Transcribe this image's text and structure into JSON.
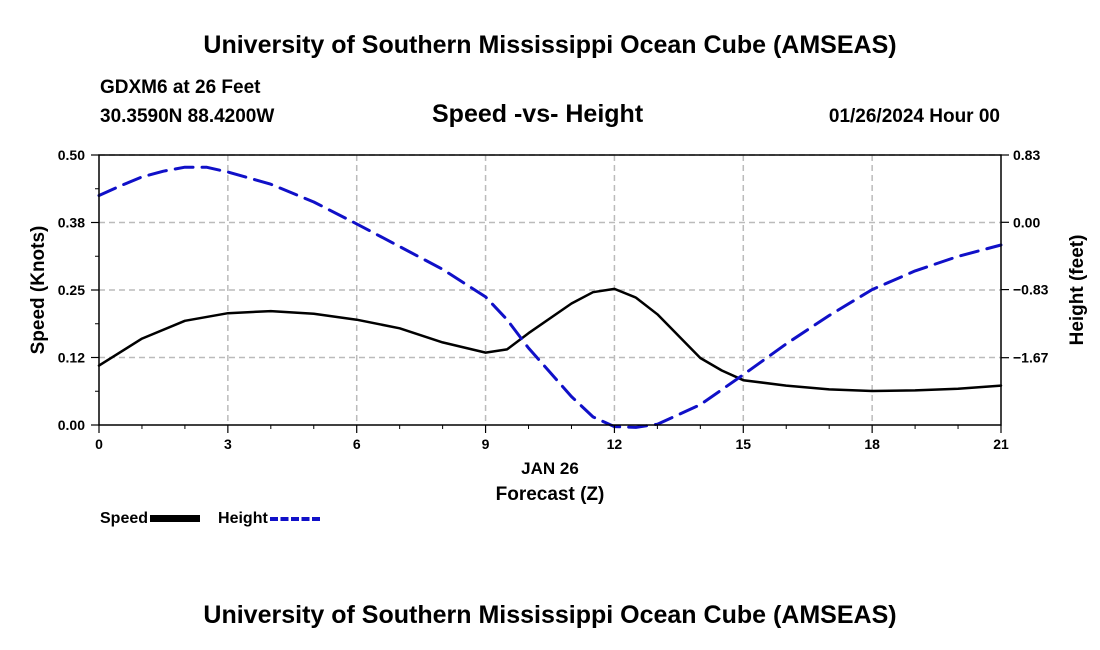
{
  "header": {
    "top_title": "University of Southern Mississippi Ocean Cube (AMSEAS)",
    "station": "GDXM6 at 26 Feet",
    "coords": "30.3590N  88.4200W",
    "chart_title": "Speed -vs- Height",
    "datetime": "01/26/2024 Hour 00",
    "bottom_title": "University of Southern Mississippi Ocean Cube (AMSEAS)"
  },
  "legend": {
    "speed_label": "Speed",
    "height_label": "Height"
  },
  "colors": {
    "speed": "#000000",
    "height": "#1010c8",
    "grid": "#bbbbbb"
  },
  "chart_data": {
    "type": "line",
    "title": "Speed -vs- Height",
    "xlabel_date": "JAN 26",
    "xlabel": "Forecast (Z)",
    "ylabel": "Speed (Knots)",
    "y2label": "Height (feet)",
    "xlim": [
      0,
      21
    ],
    "ylim": [
      0,
      0.5
    ],
    "y2lim": [
      -2.5,
      0.83
    ],
    "x_ticks": [
      0,
      3,
      6,
      9,
      12,
      15,
      18,
      21
    ],
    "x_tick_labels": [
      "0",
      "3",
      "6",
      "9",
      "12",
      "15",
      "18",
      "21"
    ],
    "y_ticks": [
      0,
      0.125,
      0.25,
      0.375,
      0.5
    ],
    "y_tick_labels": [
      "0.00",
      "0.12",
      "0.25",
      "0.38",
      "0.50"
    ],
    "y2_ticks": [
      -1.67,
      -0.83,
      0.0,
      0.83
    ],
    "y2_tick_labels": [
      "−1.67",
      "−0.83",
      "0.00",
      "0.83"
    ],
    "grid": true,
    "series": [
      {
        "name": "Speed",
        "axis": "left",
        "x": [
          0,
          1,
          2,
          3,
          4,
          5,
          6,
          7,
          8,
          9,
          9.5,
          10,
          11,
          11.5,
          12,
          12.5,
          13,
          14,
          14.5,
          15,
          16,
          17,
          18,
          19,
          20,
          21
        ],
        "values": [
          0.11,
          0.16,
          0.193,
          0.207,
          0.211,
          0.206,
          0.195,
          0.179,
          0.153,
          0.134,
          0.14,
          0.17,
          0.225,
          0.246,
          0.252,
          0.236,
          0.205,
          0.124,
          0.101,
          0.083,
          0.073,
          0.066,
          0.063,
          0.064,
          0.067,
          0.073
        ]
      },
      {
        "name": "Height",
        "axis": "right",
        "x": [
          0,
          0.5,
          1,
          1.5,
          2,
          2.5,
          3,
          4,
          5,
          6,
          7,
          8,
          9,
          9.5,
          10,
          11,
          11.5,
          12,
          12.5,
          13,
          14,
          15,
          16,
          17,
          18,
          19,
          20,
          21
        ],
        "values": [
          0.33,
          0.45,
          0.56,
          0.63,
          0.68,
          0.68,
          0.62,
          0.47,
          0.25,
          -0.02,
          -0.3,
          -0.58,
          -0.92,
          -1.2,
          -1.55,
          -2.15,
          -2.4,
          -2.52,
          -2.53,
          -2.49,
          -2.25,
          -1.88,
          -1.5,
          -1.15,
          -0.83,
          -0.6,
          -0.42,
          -0.28
        ]
      }
    ]
  }
}
